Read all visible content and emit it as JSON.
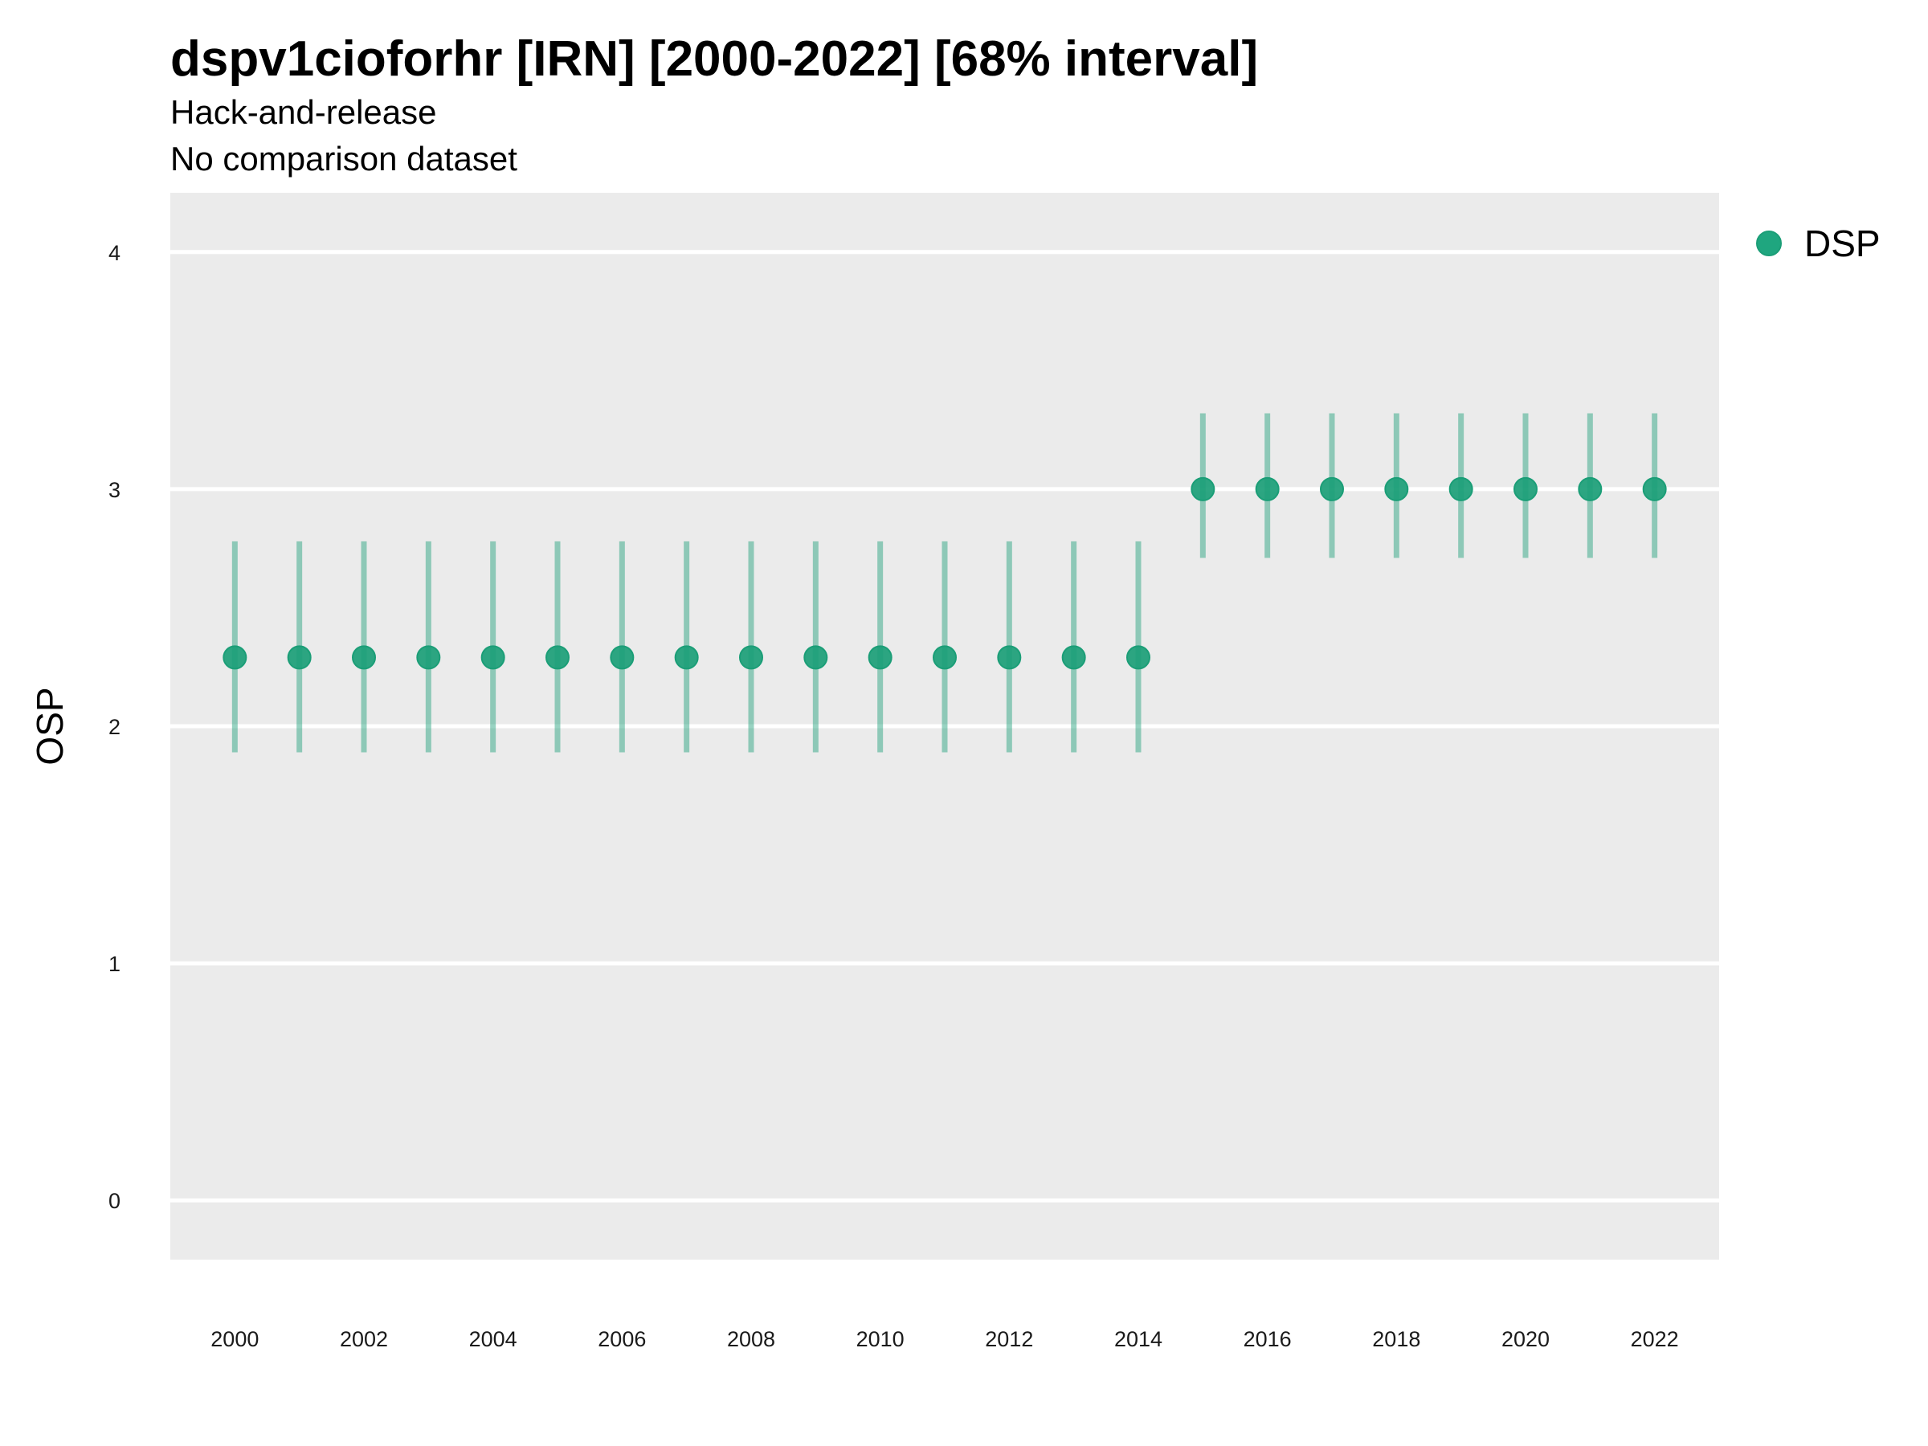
{
  "chart_data": {
    "type": "scatter",
    "title": "dspv1cioforhr [IRN] [2000-2022] [68% interval]",
    "subtitle": [
      "Hack-and-release",
      "No comparison dataset"
    ],
    "xlabel": "",
    "ylabel": "OSP",
    "xlim": [
      1999,
      2023
    ],
    "ylim": [
      -0.25,
      4.25
    ],
    "x_ticks": [
      2000,
      2002,
      2004,
      2006,
      2008,
      2010,
      2012,
      2014,
      2016,
      2018,
      2020,
      2022
    ],
    "y_ticks": [
      0,
      1,
      2,
      3,
      4
    ],
    "grid": "horizontal major lines on grey panel",
    "legend_position": "right",
    "series": [
      {
        "name": "DSP",
        "color": "#1b9e77",
        "x": [
          2000,
          2001,
          2002,
          2003,
          2004,
          2005,
          2006,
          2007,
          2008,
          2009,
          2010,
          2011,
          2012,
          2013,
          2014,
          2015,
          2016,
          2017,
          2018,
          2019,
          2020,
          2021,
          2022
        ],
        "y": [
          2.29,
          2.29,
          2.29,
          2.29,
          2.29,
          2.29,
          2.29,
          2.29,
          2.29,
          2.29,
          2.29,
          2.29,
          2.29,
          2.29,
          2.29,
          3.0,
          3.0,
          3.0,
          3.0,
          3.0,
          3.0,
          3.0,
          3.0
        ],
        "lower": [
          1.89,
          1.89,
          1.89,
          1.89,
          1.89,
          1.89,
          1.89,
          1.89,
          1.89,
          1.89,
          1.89,
          1.89,
          1.89,
          1.89,
          1.89,
          2.71,
          2.71,
          2.71,
          2.71,
          2.71,
          2.71,
          2.71,
          2.71
        ],
        "upper": [
          2.78,
          2.78,
          2.78,
          2.78,
          2.78,
          2.78,
          2.78,
          2.78,
          2.78,
          2.78,
          2.78,
          2.78,
          2.78,
          2.78,
          2.78,
          3.32,
          3.32,
          3.32,
          3.32,
          3.32,
          3.32,
          3.32,
          3.32
        ]
      }
    ]
  },
  "colors": {
    "panel": "#ebebeb",
    "grid": "#ffffff",
    "point": "#1b9e77"
  }
}
